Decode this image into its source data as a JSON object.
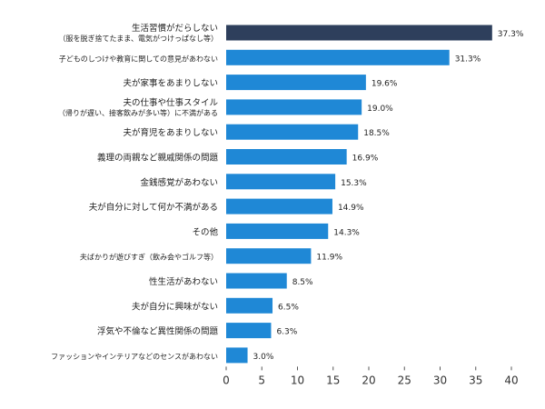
{
  "chart_data": {
    "type": "bar",
    "orientation": "horizontal",
    "categories": [
      [
        "生活習慣がだらしない",
        "（服を脱ぎ捨てたまま、電気がつけっぱなし等）"
      ],
      [
        "子どものしつけや教育に関しての意見があわない"
      ],
      [
        "夫が家事をあまりしない"
      ],
      [
        "夫の仕事や仕事スタイル",
        "（帰りが遅い、接客飲みが多い等）に不満がある"
      ],
      [
        "夫が育児をあまりしない"
      ],
      [
        "義理の両親など親戚関係の問題"
      ],
      [
        "金銭感覚があわない"
      ],
      [
        "夫が自分に対して何か不満がある"
      ],
      [
        "その他"
      ],
      [
        "夫ばかりが遊びすぎ（飲み会やゴルフ等）"
      ],
      [
        "性生活があわない"
      ],
      [
        "夫が自分に興味がない"
      ],
      [
        "浮気や不倫など異性関係の問題"
      ],
      [
        "ファッションやインテリアなどのセンスがあわない"
      ]
    ],
    "values": [
      37.3,
      31.3,
      19.6,
      19.0,
      18.5,
      16.9,
      15.3,
      14.9,
      14.3,
      11.9,
      8.5,
      6.5,
      6.3,
      3.0
    ],
    "data_labels": [
      "37.3%",
      "31.3%",
      "19.6%",
      "19.0%",
      "18.5%",
      "16.9%",
      "15.3%",
      "14.9%",
      "14.3%",
      "11.9%",
      "8.5%",
      "6.5%",
      "6.3%",
      "3.0%"
    ],
    "xlim": [
      0,
      40
    ],
    "xticks": [
      "0",
      "5",
      "10",
      "15",
      "20",
      "25",
      "30",
      "35",
      "40"
    ],
    "grid": false,
    "colors": {
      "highlight": "#2e3f5c",
      "default": "#1f88d6"
    }
  }
}
